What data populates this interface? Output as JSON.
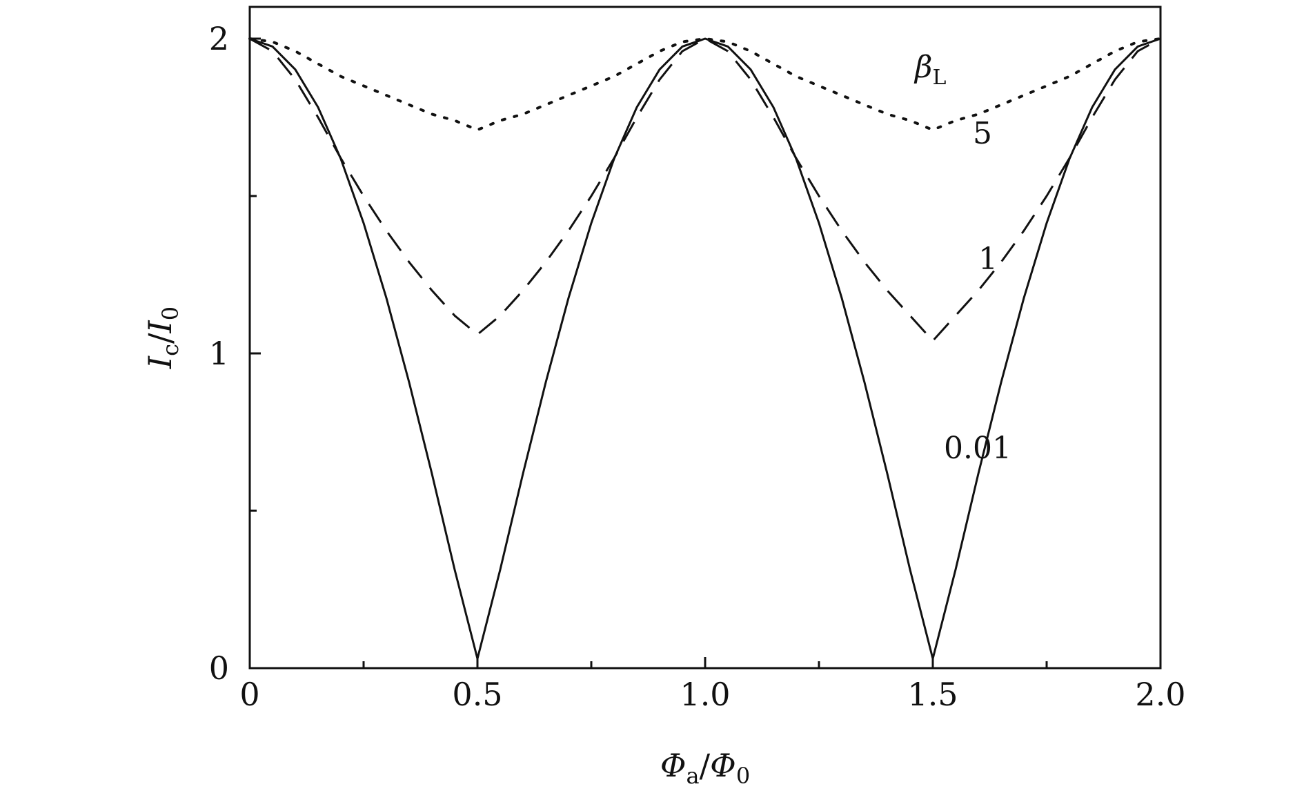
{
  "chart_data": {
    "type": "line",
    "xlim": [
      0,
      2.0
    ],
    "ylim": [
      0,
      2
    ],
    "x_ticks": [
      {
        "value": 0,
        "label": "0"
      },
      {
        "value": 0.5,
        "label": "0.5"
      },
      {
        "value": 1.0,
        "label": "1.0"
      },
      {
        "value": 1.5,
        "label": "1.5"
      },
      {
        "value": 2.0,
        "label": "2.0"
      }
    ],
    "x_minor_ticks": [
      0.25,
      0.75,
      1.25,
      1.75
    ],
    "y_ticks": [
      {
        "value": 0,
        "label": "0"
      },
      {
        "value": 1,
        "label": "1"
      },
      {
        "value": 2,
        "label": "2"
      }
    ],
    "y_minor_ticks": [
      0.5,
      1.5
    ],
    "xlabel": {
      "main": "Φ",
      "main_sub": "a",
      "sep": "/",
      "denom": "Φ",
      "denom_sub": "0"
    },
    "ylabel": {
      "main": "I",
      "main_sub": "c",
      "sep": "/",
      "denom": "I",
      "denom_sub": "0"
    },
    "legend_title": {
      "main": "β",
      "sub": "L"
    },
    "grid": false,
    "series": [
      {
        "label": "0.01",
        "style": "solid",
        "color": "#111111",
        "x": [
          0,
          0.05,
          0.1,
          0.15,
          0.2,
          0.25,
          0.3,
          0.35,
          0.4,
          0.45,
          0.5,
          0.55,
          0.6,
          0.65,
          0.7,
          0.75,
          0.8,
          0.85,
          0.9,
          0.95,
          1.0,
          1.05,
          1.1,
          1.15,
          1.2,
          1.25,
          1.3,
          1.35,
          1.4,
          1.45,
          1.5,
          1.55,
          1.6,
          1.65,
          1.7,
          1.75,
          1.8,
          1.85,
          1.9,
          1.95,
          2.0
        ],
        "y": [
          2.0,
          1.975,
          1.902,
          1.782,
          1.618,
          1.414,
          1.176,
          0.908,
          0.618,
          0.313,
          0.03,
          0.313,
          0.618,
          0.908,
          1.176,
          1.414,
          1.618,
          1.782,
          1.902,
          1.975,
          2.0,
          1.975,
          1.902,
          1.782,
          1.618,
          1.414,
          1.176,
          0.908,
          0.618,
          0.313,
          0.03,
          0.313,
          0.618,
          0.908,
          1.176,
          1.414,
          1.618,
          1.782,
          1.902,
          1.975,
          2.0
        ]
      },
      {
        "label": "1",
        "style": "dashed",
        "color": "#111111",
        "x": [
          0,
          0.05,
          0.1,
          0.15,
          0.2,
          0.25,
          0.3,
          0.35,
          0.4,
          0.45,
          0.5,
          0.55,
          0.6,
          0.65,
          0.7,
          0.75,
          0.8,
          0.85,
          0.9,
          0.95,
          1.0,
          1.05,
          1.1,
          1.15,
          1.2,
          1.25,
          1.3,
          1.35,
          1.4,
          1.45,
          1.5,
          1.55,
          1.6,
          1.65,
          1.7,
          1.75,
          1.8,
          1.85,
          1.9,
          1.95,
          2.0
        ],
        "y": [
          2.0,
          1.96,
          1.87,
          1.75,
          1.62,
          1.5,
          1.39,
          1.29,
          1.2,
          1.12,
          1.06,
          1.12,
          1.2,
          1.29,
          1.39,
          1.5,
          1.62,
          1.75,
          1.87,
          1.96,
          2.0,
          1.96,
          1.87,
          1.75,
          1.62,
          1.5,
          1.39,
          1.29,
          1.2,
          1.12,
          1.04,
          1.12,
          1.2,
          1.29,
          1.39,
          1.5,
          1.62,
          1.75,
          1.87,
          1.96,
          2.0
        ]
      },
      {
        "label": "5",
        "style": "dotted",
        "color": "#111111",
        "x": [
          0,
          0.05,
          0.1,
          0.15,
          0.2,
          0.25,
          0.3,
          0.35,
          0.4,
          0.45,
          0.5,
          0.55,
          0.6,
          0.65,
          0.7,
          0.75,
          0.8,
          0.85,
          0.9,
          0.95,
          1.0,
          1.05,
          1.1,
          1.15,
          1.2,
          1.25,
          1.3,
          1.35,
          1.4,
          1.45,
          1.5,
          1.55,
          1.6,
          1.65,
          1.7,
          1.75,
          1.8,
          1.85,
          1.9,
          1.95,
          2.0
        ],
        "y": [
          2.0,
          1.99,
          1.96,
          1.92,
          1.88,
          1.85,
          1.82,
          1.79,
          1.76,
          1.74,
          1.71,
          1.74,
          1.76,
          1.79,
          1.82,
          1.85,
          1.88,
          1.92,
          1.96,
          1.99,
          2.0,
          1.99,
          1.96,
          1.92,
          1.88,
          1.85,
          1.82,
          1.79,
          1.76,
          1.74,
          1.71,
          1.74,
          1.76,
          1.79,
          1.82,
          1.85,
          1.88,
          1.92,
          1.96,
          1.99,
          2.0
        ]
      }
    ]
  }
}
